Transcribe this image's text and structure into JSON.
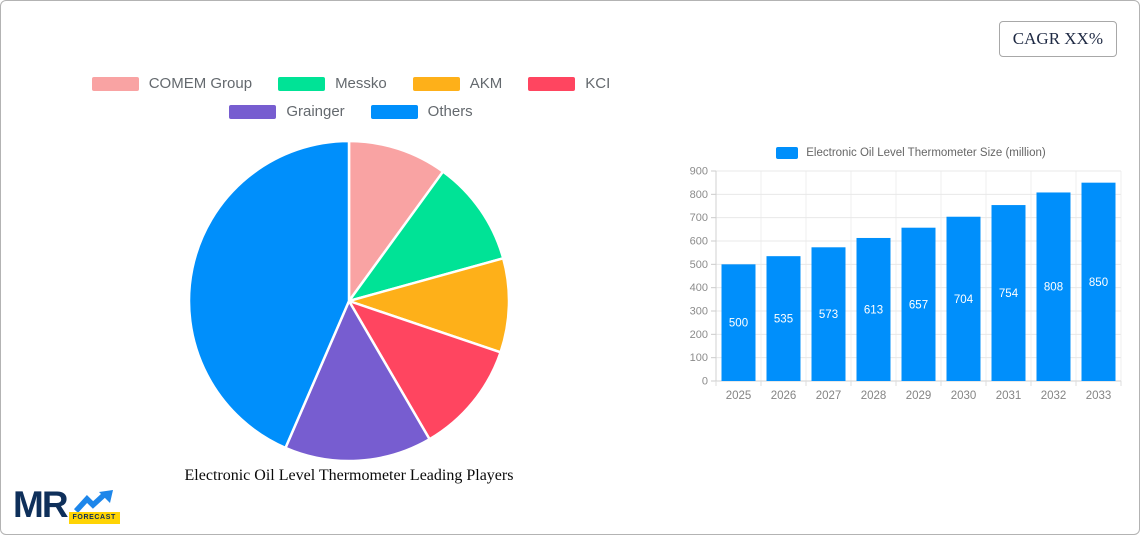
{
  "page": {
    "background": "#ffffff",
    "border_color": "#b3b3b3"
  },
  "cagr_badge": {
    "label": "CAGR XX%"
  },
  "logo": {
    "text": "MR",
    "badge": "FORECAST",
    "arrow_icon": "trend-up-arrow",
    "colors": {
      "navy": "#0e2f5a",
      "arrow_blue": "#1d86ea",
      "badge_yellow": "#ffd404"
    }
  },
  "chart_data": [
    {
      "type": "pie",
      "title": "Electronic Oil Level Thermometer Leading Players",
      "labels": [
        "COMEM Group",
        "Messko",
        "AKM",
        "KCI",
        "Grainger",
        "Others"
      ],
      "values_percent": [
        10.0,
        10.7,
        9.5,
        11.4,
        14.9,
        43.5
      ],
      "colors": [
        "#F9A3A3",
        "#00E396",
        "#FEB019",
        "#FF4560",
        "#775DD0",
        "#008FFB"
      ],
      "start_angle_deg": 0,
      "direction": "clockwise",
      "legend_position": "top",
      "slice_border_color": "#ffffff"
    },
    {
      "type": "bar",
      "legend_label": "Electronic Oil Level Thermometer Size (million)",
      "categories": [
        "2025",
        "2026",
        "2027",
        "2028",
        "2029",
        "2030",
        "2031",
        "2032",
        "2033"
      ],
      "values": [
        500,
        535,
        573,
        613,
        657,
        704,
        754,
        808,
        850
      ],
      "bar_color": "#008FFB",
      "value_label_color": "#ffffff",
      "ylim": [
        0,
        900
      ],
      "yticks": [
        0,
        100,
        200,
        300,
        400,
        500,
        600,
        700,
        800,
        900
      ],
      "grid": true,
      "legend_position": "top",
      "axis_text_color": "#8b8b8b"
    }
  ]
}
